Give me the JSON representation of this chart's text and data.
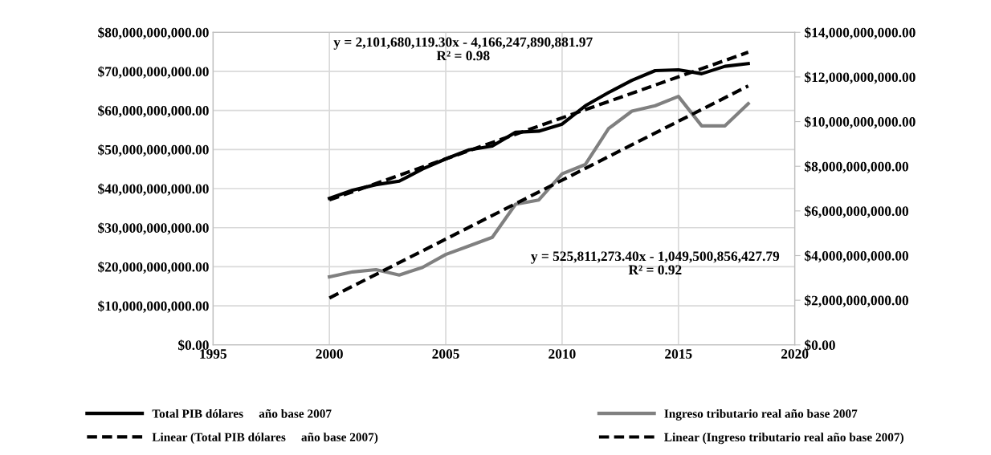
{
  "chart_data": {
    "type": "line",
    "xlim": [
      1995,
      2020
    ],
    "xticks": [
      1995,
      2000,
      2005,
      2010,
      2015,
      2020
    ],
    "ylim": [
      0,
      80000000000
    ],
    "yticks": [
      {
        "value": 0,
        "label": "$0.00"
      },
      {
        "value": 10000000000,
        "label": "$10,000,000,000.00"
      },
      {
        "value": 20000000000,
        "label": "$20,000,000,000.00"
      },
      {
        "value": 30000000000,
        "label": "$30,000,000,000.00"
      },
      {
        "value": 40000000000,
        "label": "$40,000,000,000.00"
      },
      {
        "value": 50000000000,
        "label": "$50,000,000,000.00"
      },
      {
        "value": 60000000000,
        "label": "$60,000,000,000.00"
      },
      {
        "value": 70000000000,
        "label": "$70,000,000,000.00"
      },
      {
        "value": 80000000000,
        "label": "$80,000,000,000.00"
      }
    ],
    "y2lim": [
      0,
      14000000000
    ],
    "y2ticks": [
      {
        "value": 0,
        "label": "$0.00"
      },
      {
        "value": 2000000000,
        "label": "$2,000,000,000.00"
      },
      {
        "value": 4000000000,
        "label": "$4,000,000,000.00"
      },
      {
        "value": 6000000000,
        "label": "$6,000,000,000.00"
      },
      {
        "value": 8000000000,
        "label": "$8,000,000,000.00"
      },
      {
        "value": 10000000000,
        "label": "$10,000,000,000.00"
      },
      {
        "value": 12000000000,
        "label": "$12,000,000,000.00"
      },
      {
        "value": 14000000000,
        "label": "$14,000,000,000.00"
      }
    ],
    "grid": true,
    "legend": "bottom",
    "marker": "none",
    "series": [
      {
        "name": "Total PIB dólares     año base 2007",
        "color": "#000000",
        "line_style": "solid",
        "x": [
          2000,
          2001,
          2002,
          2003,
          2004,
          2005,
          2006,
          2007,
          2008,
          2009,
          2010,
          2011,
          2012,
          2013,
          2014,
          2015,
          2016,
          2017,
          2018
        ],
        "values": [
          37500000000,
          39600000000,
          41000000000,
          41900000000,
          45000000000,
          47600000000,
          49900000000,
          50900000000,
          54400000000,
          54700000000,
          56500000000,
          61200000000,
          64600000000,
          67700000000,
          70200000000,
          70400000000,
          69400000000,
          71300000000,
          72000000000
        ]
      },
      {
        "name": "Linear (Total PIB dólares     año base 2007)",
        "color": "#000000",
        "line_style": "dashed",
        "x": [
          2000,
          2018
        ],
        "values": [
          37100000000,
          74900000000
        ]
      },
      {
        "name": "Ingreso tributario real año base 2007",
        "color": "#808080",
        "line_style": "solid",
        "axis": "y2",
        "x": [
          2000,
          2001,
          2002,
          2003,
          2004,
          2005,
          2006,
          2007,
          2008,
          2009,
          2010,
          2011,
          2012,
          2013,
          2014,
          2015,
          2016,
          2017,
          2018
        ],
        "values": [
          3050000000,
          3270000000,
          3370000000,
          3130000000,
          3470000000,
          4050000000,
          4430000000,
          4820000000,
          6300000000,
          6490000000,
          7660000000,
          8080000000,
          9690000000,
          10470000000,
          10710000000,
          11130000000,
          9810000000,
          9810000000,
          10800000000
        ]
      },
      {
        "name": "Linear (Ingreso tributario real año base 2007)",
        "color": "#000000",
        "line_style": "dashed",
        "axis": "y2",
        "x": [
          2000,
          2018
        ],
        "values": [
          2100000000,
          11600000000
        ]
      }
    ],
    "annotations": [
      "y = 2,101,680,119.30x - 4,166,247,890,881.97\nR² = 0.98",
      "y = 525,811,273.40x - 1,049,500,856,427.79\nR² = 0.92"
    ]
  }
}
